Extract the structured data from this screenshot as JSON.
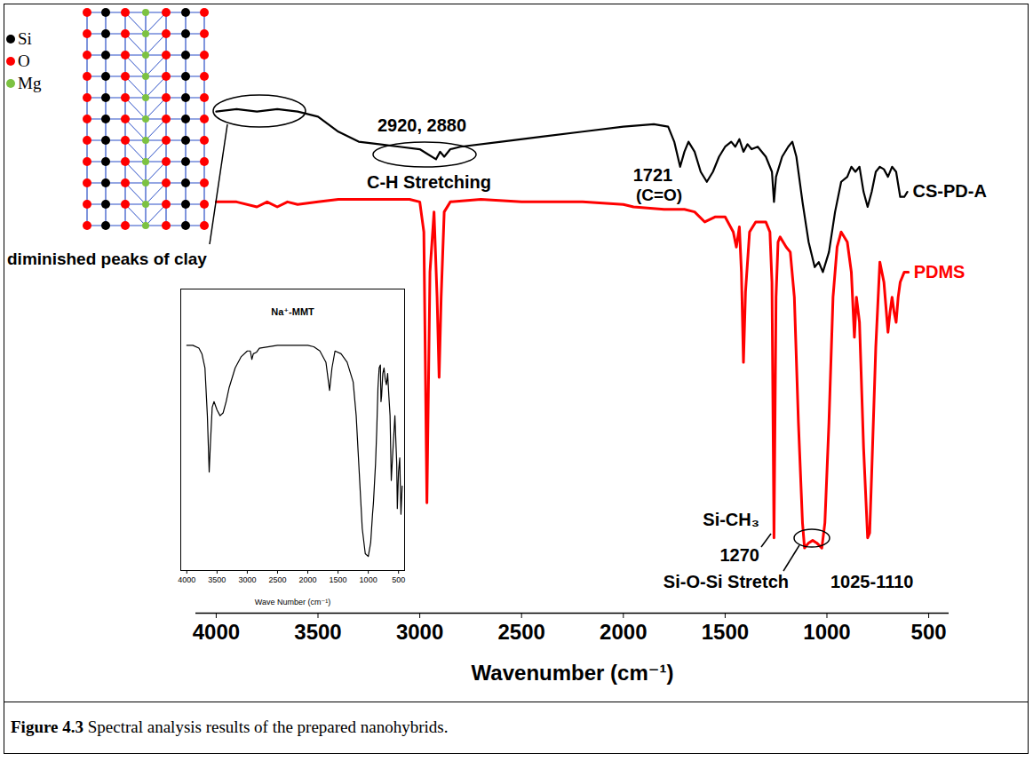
{
  "chart_data": [
    {
      "type": "line",
      "x_label": "Wavenumber (cm⁻¹)",
      "xlim": [
        4100,
        400
      ],
      "xticks": [
        4000,
        3500,
        3000,
        2500,
        2000,
        1500,
        1000,
        500
      ],
      "ylim": [
        -8,
        100
      ],
      "tick_labels": "x",
      "series": [
        {
          "name": "CS-PD-A",
          "color": "#000000",
          "x": [
            4000,
            3900,
            3800,
            3700,
            3600,
            3500,
            3400,
            3300,
            3200,
            3100,
            3000,
            2960,
            2920,
            2900,
            2880,
            2850,
            2800,
            2600,
            2400,
            2200,
            2000,
            1850,
            1780,
            1750,
            1721,
            1700,
            1680,
            1650,
            1620,
            1590,
            1560,
            1530,
            1500,
            1470,
            1450,
            1430,
            1410,
            1390,
            1370,
            1340,
            1300,
            1270,
            1260,
            1250,
            1220,
            1190,
            1170,
            1150,
            1120,
            1090,
            1060,
            1040,
            1020,
            990,
            960,
            930,
            900,
            880,
            860,
            840,
            820,
            800,
            780,
            760,
            740,
            720,
            700,
            680,
            660,
            640,
            620,
            605
          ],
          "values": [
            92,
            92.5,
            92,
            92.5,
            92,
            91,
            88,
            86,
            85.5,
            85,
            84.5,
            83.5,
            82.5,
            84,
            83,
            84.5,
            85,
            86,
            87,
            88,
            89,
            89.5,
            89,
            86,
            81,
            84,
            86,
            84,
            80,
            78,
            80,
            83,
            85,
            86,
            85,
            86.5,
            84,
            85.5,
            84.5,
            85,
            83,
            80,
            74,
            79,
            83,
            85,
            86,
            83,
            74,
            66,
            61,
            62,
            60,
            64,
            72,
            78,
            79,
            81,
            80,
            81,
            76,
            73,
            76,
            80,
            81,
            80.5,
            79,
            81,
            80,
            75,
            75,
            76
          ]
        },
        {
          "name": "PDMS",
          "color": "#ff0000",
          "x": [
            4000,
            3900,
            3800,
            3750,
            3700,
            3650,
            3600,
            3500,
            3400,
            3200,
            3050,
            3000,
            2980,
            2965,
            2950,
            2930,
            2915,
            2905,
            2895,
            2880,
            2850,
            2700,
            2500,
            2200,
            2000,
            1950,
            1800,
            1700,
            1650,
            1600,
            1550,
            1500,
            1460,
            1445,
            1430,
            1420,
            1410,
            1400,
            1380,
            1350,
            1300,
            1280,
            1270,
            1260,
            1250,
            1240,
            1230,
            1200,
            1180,
            1160,
            1140,
            1120,
            1110,
            1090,
            1070,
            1050,
            1025,
            1010,
            990,
            970,
            950,
            930,
            900,
            880,
            865,
            855,
            840,
            820,
            800,
            790,
            780,
            760,
            740,
            720,
            700,
            690,
            680,
            670,
            660,
            650,
            640,
            620,
            600
          ],
          "values": [
            74,
            74,
            73,
            74,
            73,
            74,
            73.5,
            74,
            74.5,
            74.5,
            74.5,
            74,
            68,
            14,
            60,
            72,
            55,
            39,
            55,
            72,
            74,
            74.5,
            74,
            74,
            73.5,
            73,
            72.5,
            72.5,
            72,
            70,
            71,
            71,
            68,
            65,
            69,
            60,
            42,
            56,
            68,
            70,
            70,
            68,
            58,
            7,
            55,
            66,
            67,
            65,
            64,
            55,
            30,
            10,
            5,
            6,
            6.5,
            6,
            5,
            10,
            30,
            55,
            65,
            68,
            66,
            60,
            47,
            55,
            50,
            25,
            7,
            8,
            20,
            45,
            62,
            58,
            48,
            52,
            55,
            52,
            50,
            55,
            58,
            60,
            60
          ]
        }
      ],
      "annotations": [
        "2920, 2880",
        "C-H Stretching",
        "1721",
        "(C=O)",
        "Si-CH₃",
        "1270",
        "Si-O-Si Stretch",
        "1025-1110",
        "diminished peaks of clay"
      ]
    },
    {
      "type": "line",
      "title": "Na⁺-MMT",
      "x_label": "Wave Number (cm⁻¹)",
      "xlim": [
        4100,
        400
      ],
      "xticks": [
        4000,
        3500,
        3000,
        2500,
        2000,
        1500,
        1000,
        500
      ],
      "ylim": [
        0,
        100
      ],
      "tick_labels": "x",
      "color": "#000000",
      "x": [
        4000,
        3900,
        3800,
        3750,
        3700,
        3660,
        3630,
        3610,
        3580,
        3550,
        3500,
        3450,
        3400,
        3350,
        3300,
        3200,
        3100,
        3000,
        2950,
        2925,
        2900,
        2850,
        2800,
        2500,
        2000,
        1900,
        1800,
        1700,
        1640,
        1600,
        1550,
        1450,
        1350,
        1250,
        1200,
        1150,
        1100,
        1050,
        1000,
        960,
        930,
        915,
        900,
        880,
        860,
        840,
        820,
        800,
        790,
        780,
        760,
        740,
        720,
        700,
        680,
        660,
        640,
        620,
        600,
        560,
        530,
        520,
        500,
        480,
        460,
        440
      ],
      "values": [
        80,
        80,
        79,
        77,
        72,
        55,
        35,
        45,
        58,
        60,
        57,
        55,
        56,
        60,
        65,
        72,
        76,
        78,
        78,
        75,
        77,
        77.5,
        79,
        80,
        80,
        79.5,
        78,
        74,
        64,
        72,
        78,
        77,
        74,
        67,
        55,
        35,
        15,
        6,
        5,
        10,
        20,
        24,
        30,
        38,
        50,
        65,
        72,
        73,
        60,
        62,
        70,
        72,
        68,
        66,
        70,
        62,
        55,
        32,
        40,
        55,
        38,
        22,
        35,
        40,
        20,
        30
      ]
    }
  ],
  "diagram": {
    "legend": [
      {
        "label": "Si",
        "color": "#000000"
      },
      {
        "label": "O",
        "color": "#ff0000"
      },
      {
        "label": "Mg",
        "color": "#7cc242"
      }
    ]
  },
  "caption": {
    "label": "Figure 4.3",
    "text": "Spectral analysis results of the prepared nanohybrids."
  }
}
